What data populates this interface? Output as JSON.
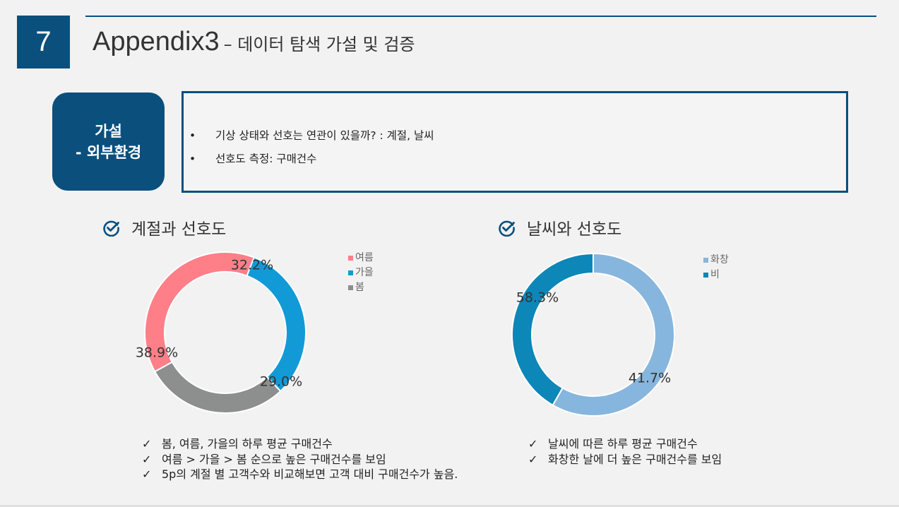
{
  "page": {
    "number": "7",
    "title_main": "Appendix3",
    "title_sub": "– 데이터 탐색 가설 및 검증"
  },
  "hypothesis": {
    "badge_line1": "가설",
    "badge_line2": "- 외부환경",
    "bullets": [
      {
        "marker": "•",
        "text": "기상 상태와 선호는 연관이 있을까? : 계절, 날씨"
      },
      {
        "marker": "•",
        "text": "선호도 측정: 구매건수"
      }
    ]
  },
  "sections": {
    "season_title": "계절과 선호도",
    "weather_title": "날씨와 선호도",
    "check_icon_color": "#0b4f7d"
  },
  "chart_data": [
    {
      "type": "pie",
      "donut": true,
      "labels": [
        "여름",
        "가을",
        "봄"
      ],
      "values": [
        38.9,
        32.2,
        29.0
      ],
      "value_labels": [
        "38.9%",
        "32.2%",
        "29.0%"
      ],
      "colors": [
        "#ff7f88",
        "#129ad6",
        "#8c8f8d"
      ],
      "legend_position": "right"
    },
    {
      "type": "pie",
      "donut": true,
      "labels": [
        "화창",
        "비"
      ],
      "values": [
        58.3,
        41.7
      ],
      "value_labels": [
        "58.3%",
        "41.7%"
      ],
      "colors": [
        "#86b6dd",
        "#0d86b8"
      ],
      "legend_position": "right"
    }
  ],
  "notes_season": [
    {
      "mark": "✓",
      "text": "봄, 여름, 가을의 하루 평균 구매건수"
    },
    {
      "mark": "✓",
      "text": "여름 > 가을 > 봄 순으로 높은 구매건수를 보임"
    },
    {
      "mark": "✓",
      "text": "5p의 계절 별 고객수와 비교해보면 고객 대비 구매건수가 높음."
    }
  ],
  "notes_weather": [
    {
      "mark": "✓",
      "text": "날씨에 따른 하루 평균 구매건수"
    },
    {
      "mark": "✓",
      "text": "화창한 날에 더 높은 구매건수를 보임"
    }
  ]
}
